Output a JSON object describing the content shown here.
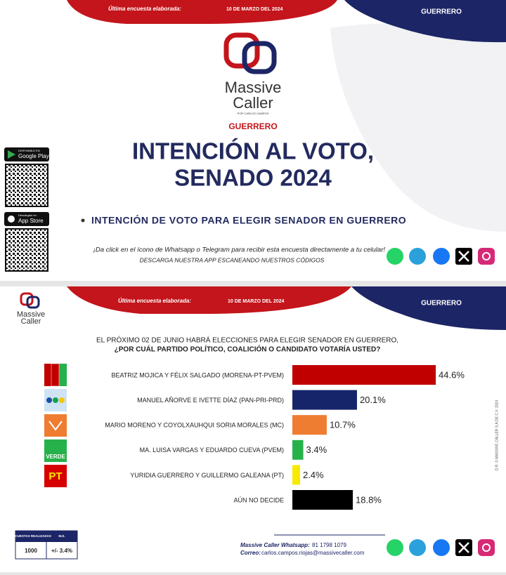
{
  "slide1": {
    "header_label": "Última encuesta elaborada:",
    "header_date": "10 DE MARZO DEL 2024",
    "region": "GUERRERO",
    "logo": [
      "Massive",
      "Caller",
      "POR CARLOS CAMPOS"
    ],
    "state": "GUERRERO",
    "title": [
      "INTENCIÓN AL VOTO,",
      "SENADO 2024"
    ],
    "bullet": "INTENCIÓN DE VOTO PARA ELEGIR SENADOR EN GUERRERO",
    "cta": "¡Da click en el ícono de Whatsapp o Telegram para recibir esta encuesta directamente a tu celular!",
    "download": "DESCARGA NUESTRA APP ESCANEANDO NUESTROS CÓDIGOS",
    "stores": [
      {
        "small": "DISPONIBLE EN",
        "name": "Google Play"
      },
      {
        "small": "Descárgalo en",
        "name": "App Store"
      }
    ]
  },
  "slide2": {
    "header_label": "Última encuesta elaborada:",
    "header_date": "10 DE MARZO DEL 2024",
    "region": "GUERRERO",
    "logo": [
      "Massive",
      "Caller"
    ],
    "question": [
      "EL PRÓXIMO 02 DE JUNIO HABRÁ ELECCIONES PARA ELEGIR SENADOR EN GUERRERO,",
      "¿POR CUÁL PARTIDO POLÍTICO, COALICIÓN O CANDIDATO  VOTARÍA USTED?"
    ],
    "side_note": "D.R. © MASSIVE CALLER S.A DE C.V. 2024",
    "table": {
      "headers": [
        "ENCUESTAS REALIZADAS",
        "M.E."
      ],
      "row": [
        "1000",
        "+/- 3.4%"
      ]
    },
    "contact": [
      {
        "label": "Massive Caller Whatsapp:",
        "value": "81 1798 1079"
      },
      {
        "label": "Correo:",
        "value": "carlos.campos.riojas@massivecaller.com"
      }
    ]
  },
  "chart_data": {
    "type": "bar",
    "orientation": "horizontal",
    "categories": [
      "BEATRIZ MOJICA Y FÉLIX SALGADO (MORENA-PT-PVEM)",
      "MANUEL AÑORVE E IVETTE DÍAZ (PAN-PRI-PRD)",
      "MARIO MORENO Y COYOLXAUHQUI SORIA MORALES (MC)",
      "MA. LUISA VARGAS Y EDUARDO CUEVA (PVEM)",
      "YURIDIA GUERRERO Y GUILLERMO GALEANA (PT)",
      "AÚN NO DECIDE"
    ],
    "values": [
      44.6,
      20.1,
      10.7,
      3.4,
      2.4,
      18.8
    ],
    "value_labels": [
      "44.6%",
      "20.1%",
      "10.7%",
      "3.4%",
      "2.4%",
      "18.8%"
    ],
    "colors": [
      "#c00000",
      "#16256a",
      "#ef7d31",
      "#27b14a",
      "#f7ea00",
      "#000000"
    ]
  }
}
